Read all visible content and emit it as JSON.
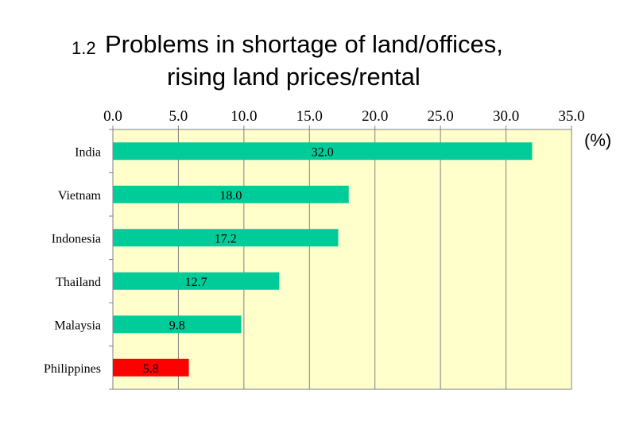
{
  "title": {
    "number": "1.2",
    "line1": "Problems in shortage of land/offices,",
    "line2": "rising land prices/rental"
  },
  "unit_label": "(%)",
  "colors": {
    "plot_bg": "#FFFFCC",
    "bar": "#00CC99",
    "highlight_bar": "#FF0000",
    "grid": "#808080"
  },
  "chart_data": {
    "type": "bar",
    "orientation": "horizontal",
    "title": "Problems in shortage of land/offices, rising land prices/rental",
    "xlabel": "(%)",
    "ylabel": "",
    "categories": [
      "India",
      "Vietnam",
      "Indonesia",
      "Thailand",
      "Malaysia",
      "Philippines"
    ],
    "values": [
      32.0,
      18.0,
      17.2,
      12.7,
      9.8,
      5.8
    ],
    "value_labels": [
      "32.0",
      "18.0",
      "17.2",
      "12.7",
      "9.8",
      "5.8"
    ],
    "highlight": "Philippines",
    "xlim": [
      0,
      35
    ],
    "ticks": [
      0,
      5,
      10,
      15,
      20,
      25,
      30,
      35
    ],
    "tick_labels": [
      "0.0",
      "5.0",
      "10.0",
      "15.0",
      "20.0",
      "25.0",
      "30.0",
      "35.0"
    ],
    "grid": true,
    "axis_position": "top"
  }
}
